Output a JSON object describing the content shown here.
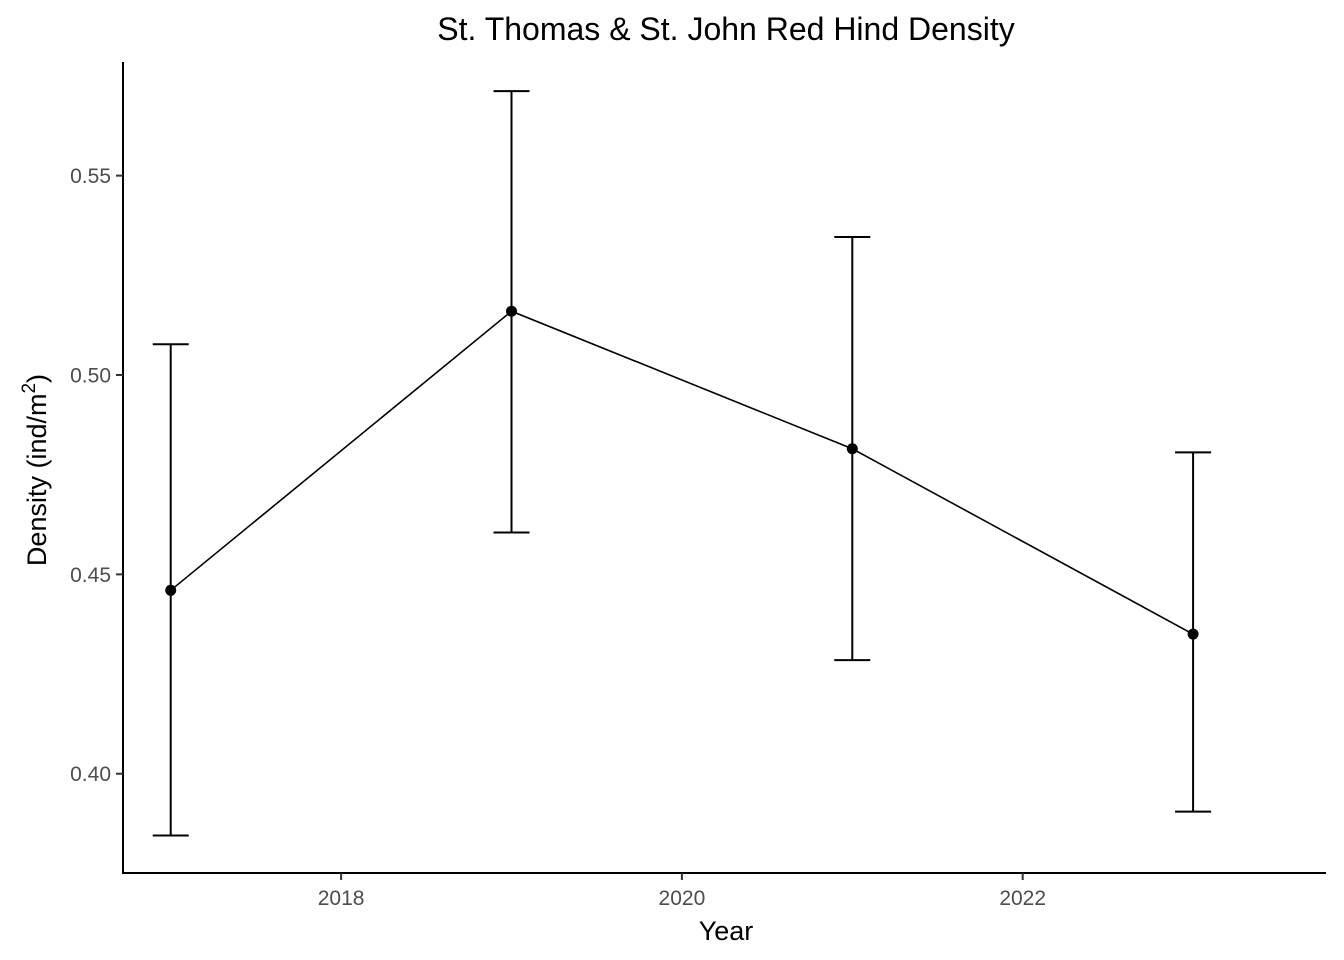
{
  "chart_data": {
    "type": "line",
    "title": "St. Thomas & St. John Red Hind Density",
    "xlabel": "Year",
    "ylabel": "Density (ind/m",
    "ylabel_superscript": "2",
    "ylabel_suffix": ")",
    "xlim": [
      2016.72,
      2023.78
    ],
    "ylim": [
      0.3751,
      0.5785
    ],
    "x_ticks": [
      2018,
      2020,
      2022
    ],
    "y_ticks": [
      0.4,
      0.45,
      0.5,
      0.55
    ],
    "y_tick_labels": [
      "0.40",
      "0.45",
      "0.50",
      "0.55"
    ],
    "grid": false,
    "legend": "none",
    "series": [
      {
        "x": [
          2017,
          2019,
          2021,
          2023
        ],
        "y": [
          0.446,
          0.516,
          0.4815,
          0.435
        ],
        "ymin": [
          0.3845,
          0.4605,
          0.4285,
          0.3905
        ],
        "ymax": [
          0.5077,
          0.5712,
          0.5346,
          0.4806
        ]
      }
    ],
    "colors": {
      "line": "#000000",
      "point": "#000000",
      "tick_label": "#4d4d4d"
    }
  }
}
